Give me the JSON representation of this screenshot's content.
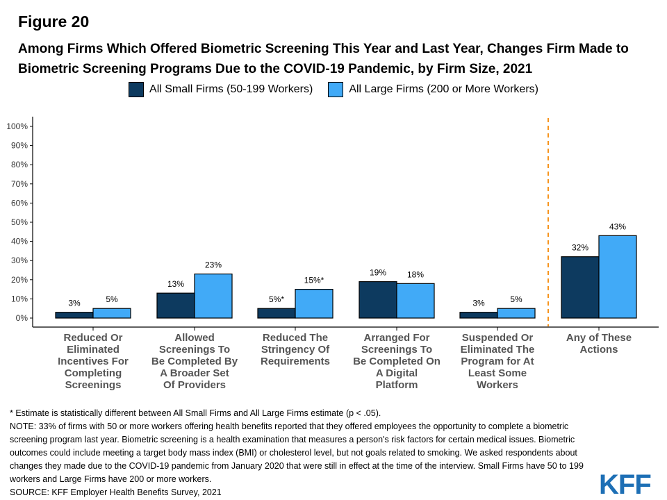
{
  "figure_label": "Figure 20",
  "chart_data": {
    "type": "bar",
    "title": "Among Firms Which Offered Biometric Screening This Year and Last Year, Changes Firm Made to Biometric Screening Programs Due to the COVID-19 Pandemic, by Firm Size, 2021",
    "categories": [
      "Reduced Or Eliminated Incentives For Completing Screenings",
      "Allowed Screenings To Be Completed By A Broader Set Of Providers",
      "Reduced The Stringency Of Requirements",
      "Arranged For Screenings To Be Completed On A Digital Platform",
      "Suspended Or Eliminated The Program for At Least Some Workers",
      "Any of These Actions"
    ],
    "category_lines": [
      [
        "Reduced Or",
        "Eliminated",
        "Incentives For",
        "Completing",
        "Screenings"
      ],
      [
        "Allowed",
        "Screenings To",
        "Be Completed By",
        "A Broader Set",
        "Of Providers"
      ],
      [
        "Reduced The",
        "Stringency Of",
        "Requirements"
      ],
      [
        "Arranged For",
        "Screenings To",
        "Be Completed On",
        "A Digital",
        "Platform"
      ],
      [
        "Suspended Or",
        "Eliminated The",
        "Program for At",
        "Least Some",
        "Workers"
      ],
      [
        "Any of These",
        "Actions"
      ]
    ],
    "series": [
      {
        "name": "All Small Firms (50-199 Workers)",
        "color": "#0d3a5f",
        "values": [
          3,
          13,
          5,
          19,
          3,
          32
        ],
        "labels": [
          "3%",
          "13%",
          "5%*",
          "19%",
          "3%",
          "32%"
        ]
      },
      {
        "name": "All Large Firms (200 or More Workers)",
        "color": "#41aaf7",
        "values": [
          5,
          23,
          15,
          18,
          5,
          43
        ],
        "labels": [
          "5%",
          "23%",
          "15%*",
          "18%",
          "5%",
          "43%"
        ]
      }
    ],
    "ylim": [
      0,
      100
    ],
    "yticks": [
      "0%",
      "10%",
      "20%",
      "30%",
      "40%",
      "50%",
      "60%",
      "70%",
      "80%",
      "90%",
      "100%"
    ],
    "xlabel": "",
    "ylabel": "",
    "grid": false,
    "legend_position": "top",
    "separator_color": "#f7941d"
  },
  "footnotes": [
    "* Estimate is statistically different between All Small Firms and All Large Firms estimate (p < .05).",
    "NOTE: 33% of firms with 50 or more workers offering health benefits reported that they offered employees the opportunity to complete a biometric screening program last year. Biometric screening is a health examination that measures a person's risk factors for certain medical issues. Biometric outcomes could include meeting a target body mass index (BMI) or cholesterol level, but not goals related to smoking. We asked respondents about changes they made due to the COVID-19 pandemic from January 2020 that were still in effect at the time of the interview. Small Firms have 50 to 199 workers and Large Firms have 200 or more workers.",
    "SOURCE: KFF Employer Health Benefits Survey, 2021"
  ],
  "logo_text": "KFF"
}
